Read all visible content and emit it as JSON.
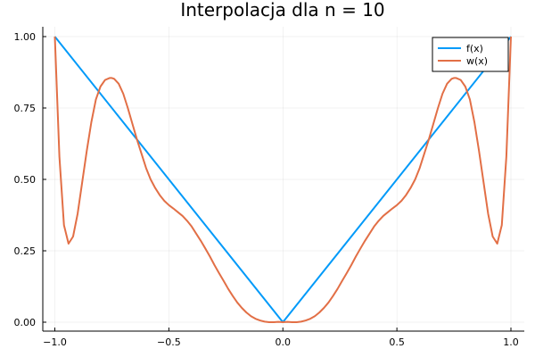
{
  "chart_data": {
    "type": "line",
    "title": "Interpolacja dla n = 10",
    "xlabel": "",
    "ylabel": "",
    "xlim": [
      -1.0,
      1.0
    ],
    "ylim": [
      0.0,
      1.0
    ],
    "x_ticks": [
      -1.0,
      -0.5,
      0.0,
      0.5,
      1.0
    ],
    "x_tick_labels": [
      "−1.0",
      "−0.5",
      "0.0",
      "0.5",
      "1.0"
    ],
    "y_ticks": [
      0.0,
      0.25,
      0.5,
      0.75,
      1.0
    ],
    "y_tick_labels": [
      "0.00",
      "0.25",
      "0.50",
      "0.75",
      "1.00"
    ],
    "grid": true,
    "legend_position": "top-right",
    "series": [
      {
        "name": "f(x)",
        "color": "#009af9",
        "x": [
          -1.0,
          0.0,
          1.0
        ],
        "y": [
          1.0,
          0.0,
          1.0
        ]
      },
      {
        "name": "w(x)",
        "color": "#e26f46",
        "x": [
          -1.0,
          -0.98,
          -0.96,
          -0.94,
          -0.92,
          -0.9,
          -0.88,
          -0.86,
          -0.84,
          -0.82,
          -0.8,
          -0.78,
          -0.76,
          -0.75,
          -0.74,
          -0.72,
          -0.7,
          -0.68,
          -0.66,
          -0.64,
          -0.62,
          -0.6,
          -0.58,
          -0.56,
          -0.54,
          -0.52,
          -0.5,
          -0.48,
          -0.46,
          -0.44,
          -0.42,
          -0.4,
          -0.38,
          -0.36,
          -0.34,
          -0.32,
          -0.3,
          -0.28,
          -0.26,
          -0.24,
          -0.22,
          -0.2,
          -0.18,
          -0.16,
          -0.14,
          -0.12,
          -0.1,
          -0.08,
          -0.06,
          -0.04,
          -0.02,
          0.0,
          0.02,
          0.04,
          0.06,
          0.08,
          0.1,
          0.12,
          0.14,
          0.16,
          0.18,
          0.2,
          0.22,
          0.24,
          0.26,
          0.28,
          0.3,
          0.32,
          0.34,
          0.36,
          0.38,
          0.4,
          0.42,
          0.44,
          0.46,
          0.48,
          0.5,
          0.52,
          0.54,
          0.56,
          0.58,
          0.6,
          0.62,
          0.64,
          0.66,
          0.68,
          0.7,
          0.72,
          0.74,
          0.75,
          0.76,
          0.78,
          0.8,
          0.82,
          0.84,
          0.86,
          0.88,
          0.9,
          0.92,
          0.94,
          0.96,
          0.98,
          1.0
        ],
        "y": [
          1.0,
          0.58,
          0.34,
          0.275,
          0.3,
          0.38,
          0.49,
          0.6,
          0.7,
          0.78,
          0.825,
          0.848,
          0.855,
          0.855,
          0.852,
          0.835,
          0.8,
          0.75,
          0.695,
          0.64,
          0.59,
          0.54,
          0.5,
          0.47,
          0.445,
          0.425,
          0.41,
          0.398,
          0.385,
          0.372,
          0.355,
          0.335,
          0.31,
          0.285,
          0.258,
          0.23,
          0.2,
          0.172,
          0.145,
          0.117,
          0.092,
          0.069,
          0.05,
          0.034,
          0.021,
          0.012,
          0.006,
          0.002,
          0.0,
          0.0,
          0.001,
          0.0,
          0.001,
          0.0,
          0.0,
          0.002,
          0.006,
          0.012,
          0.021,
          0.034,
          0.05,
          0.069,
          0.092,
          0.117,
          0.145,
          0.172,
          0.2,
          0.23,
          0.258,
          0.285,
          0.31,
          0.335,
          0.355,
          0.372,
          0.385,
          0.398,
          0.41,
          0.425,
          0.445,
          0.47,
          0.5,
          0.54,
          0.59,
          0.64,
          0.695,
          0.75,
          0.8,
          0.835,
          0.852,
          0.855,
          0.855,
          0.848,
          0.825,
          0.78,
          0.7,
          0.6,
          0.49,
          0.38,
          0.3,
          0.275,
          0.34,
          0.58,
          1.0
        ]
      }
    ]
  }
}
